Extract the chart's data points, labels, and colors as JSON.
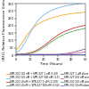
{
  "title": "",
  "xlabel": "Time (Hours)",
  "ylabel": "ThT Fluorescence\n(RFU, Relative Fluorescence Units)",
  "xlim": [
    0,
    50
  ],
  "ylim": [
    0,
    350
  ],
  "yticks": [
    0,
    50,
    100,
    150,
    200,
    250,
    300,
    350
  ],
  "xticks": [
    0,
    10,
    20,
    30,
    40,
    50
  ],
  "background_color": "#ffffff",
  "series": [
    {
      "label": "SPR-330 100 nM + SPR-327 1 uM (1:10)",
      "color": "#f5a623",
      "style": "-",
      "lw": 0.6,
      "x": [
        0,
        2,
        4,
        6,
        8,
        10,
        12,
        14,
        16,
        18,
        20,
        22,
        24,
        26,
        28,
        30,
        32,
        34,
        36,
        38,
        40,
        42,
        44,
        46,
        48,
        50
      ],
      "y": [
        35,
        55,
        78,
        108,
        138,
        162,
        182,
        198,
        212,
        222,
        232,
        240,
        247,
        253,
        258,
        263,
        268,
        272,
        276,
        279,
        282,
        284,
        286,
        288,
        290,
        292
      ]
    },
    {
      "label": "SPR-330 100 nM + SPR-327 500 nM (1:5)",
      "color": "#74b9e8",
      "style": "-",
      "lw": 0.6,
      "x": [
        0,
        2,
        4,
        6,
        8,
        10,
        12,
        14,
        16,
        18,
        20,
        22,
        24,
        26,
        28,
        30,
        32,
        34,
        36,
        38,
        40,
        42,
        44,
        46,
        48,
        50
      ],
      "y": [
        18,
        28,
        48,
        78,
        112,
        148,
        183,
        212,
        238,
        256,
        272,
        285,
        296,
        306,
        313,
        320,
        325,
        330,
        334,
        338,
        341,
        344,
        347,
        349,
        351,
        353
      ]
    },
    {
      "label": "SPR-330 10 nM + SPR-327 1 uM (1:100)",
      "color": "#cc3333",
      "style": "-",
      "lw": 0.6,
      "x": [
        0,
        2,
        4,
        6,
        8,
        10,
        12,
        14,
        16,
        18,
        20,
        22,
        24,
        26,
        28,
        30,
        32,
        34,
        36,
        38,
        40,
        42,
        44,
        46,
        48,
        50
      ],
      "y": [
        5,
        6,
        7,
        9,
        12,
        16,
        21,
        29,
        39,
        51,
        64,
        78,
        93,
        108,
        122,
        135,
        147,
        157,
        165,
        172,
        179,
        185,
        190,
        195,
        199,
        202
      ]
    },
    {
      "label": "SPR-330 10 nM + SPR-327 500 nM (1:50)",
      "color": "#5aaa5a",
      "style": "-",
      "lw": 0.6,
      "x": [
        0,
        2,
        4,
        6,
        8,
        10,
        12,
        14,
        16,
        18,
        20,
        22,
        24,
        26,
        28,
        30,
        32,
        34,
        36,
        38,
        40,
        42,
        44,
        46,
        48,
        50
      ],
      "y": [
        5,
        5,
        6,
        7,
        9,
        12,
        16,
        22,
        30,
        41,
        53,
        66,
        80,
        93,
        106,
        118,
        128,
        138,
        146,
        153,
        159,
        165,
        170,
        174,
        178,
        182
      ]
    },
    {
      "label": "SPR-327 1 uM alone",
      "color": "#8855aa",
      "style": "-",
      "lw": 0.6,
      "x": [
        0,
        2,
        4,
        6,
        8,
        10,
        12,
        14,
        16,
        18,
        20,
        22,
        24,
        26,
        28,
        30,
        32,
        34,
        36,
        38,
        40,
        42,
        44,
        46,
        48,
        50
      ],
      "y": [
        5,
        5,
        5,
        5,
        5,
        5,
        5,
        5,
        5,
        5,
        5,
        5,
        5,
        5,
        5,
        6,
        7,
        9,
        11,
        14,
        18,
        22,
        27,
        32,
        37,
        42
      ]
    },
    {
      "label": "SPR-327 500 nM alone",
      "color": "#cc6688",
      "style": "-",
      "lw": 0.6,
      "x": [
        0,
        2,
        4,
        6,
        8,
        10,
        12,
        14,
        16,
        18,
        20,
        22,
        24,
        26,
        28,
        30,
        32,
        34,
        36,
        38,
        40,
        42,
        44,
        46,
        48,
        50
      ],
      "y": [
        5,
        5,
        5,
        5,
        5,
        5,
        5,
        5,
        5,
        5,
        5,
        5,
        5,
        5,
        5,
        5,
        5,
        6,
        7,
        8,
        9,
        11,
        13,
        16,
        19,
        22
      ]
    },
    {
      "label": "SPR-330 100 nM alone",
      "color": "#33aaaa",
      "style": "-",
      "lw": 0.6,
      "x": [
        0,
        2,
        4,
        6,
        8,
        10,
        12,
        14,
        16,
        18,
        20,
        22,
        24,
        26,
        28,
        30,
        32,
        34,
        36,
        38,
        40,
        42,
        44,
        46,
        48,
        50
      ],
      "y": [
        5,
        5,
        5,
        5,
        5,
        5,
        5,
        5,
        5,
        5,
        5,
        5,
        5,
        5,
        5,
        5,
        5,
        5,
        5,
        5,
        5,
        5,
        5,
        5,
        5,
        5
      ]
    },
    {
      "label": "SPR-330 10 nM alone",
      "color": "#7777ee",
      "style": "-",
      "lw": 0.6,
      "x": [
        0,
        2,
        4,
        6,
        8,
        10,
        12,
        14,
        16,
        18,
        20,
        22,
        24,
        26,
        28,
        30,
        32,
        34,
        36,
        38,
        40,
        42,
        44,
        46,
        48,
        50
      ],
      "y": [
        5,
        5,
        5,
        5,
        5,
        5,
        5,
        5,
        5,
        5,
        5,
        5,
        5,
        5,
        5,
        5,
        5,
        5,
        5,
        5,
        5,
        5,
        5,
        5,
        5,
        5
      ]
    }
  ],
  "legend_fontsize": 2.0,
  "axis_label_fontsize": 3.0,
  "tick_fontsize": 2.5,
  "legend_title": "Time (Hours)"
}
